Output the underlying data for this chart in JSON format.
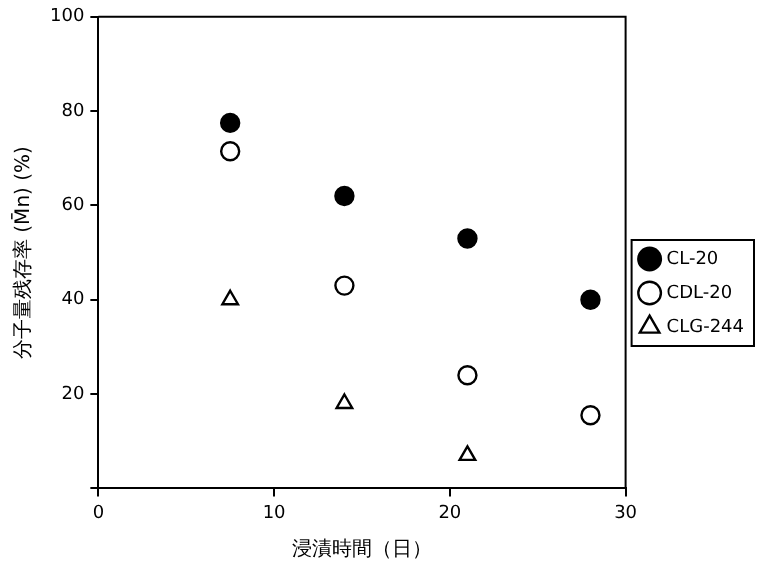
{
  "chart_data": {
    "type": "scatter",
    "xlabel": "浸漬時間（日）",
    "ylabel": "分子量残存率 (M̄n) (%)",
    "xlim": [
      0,
      30
    ],
    "xticks": [
      0,
      10,
      20,
      30
    ],
    "ylim": [
      0,
      100
    ],
    "yticks": [
      {
        "value": 0,
        "label": null
      },
      20,
      40,
      60,
      80,
      100
    ],
    "grid": false,
    "legend": "right",
    "series": [
      {
        "name": "CL-20",
        "color": "#000000",
        "marker": "circle",
        "x": [
          7.5,
          14,
          21,
          28
        ],
        "values": [
          77.5,
          62,
          53,
          40
        ]
      },
      {
        "name": "CDL-20",
        "color": "#ffffff",
        "marker": "circle",
        "x": [
          7.5,
          14,
          21,
          28
        ],
        "values": [
          71.5,
          43,
          24,
          15.5
        ]
      },
      {
        "name": "CLG-244",
        "color": "#ffffff",
        "marker": "triangle",
        "x": [
          7.5,
          14,
          21
        ],
        "values": [
          40,
          18,
          7
        ]
      }
    ]
  }
}
